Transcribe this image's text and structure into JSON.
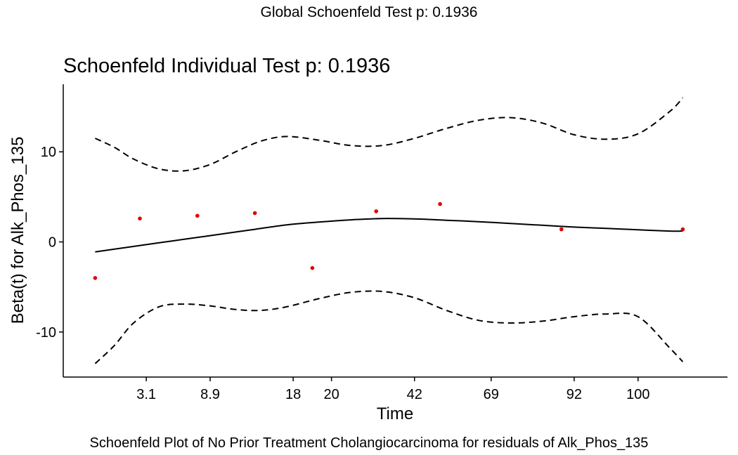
{
  "header": {
    "suptitle": "Global Schoenfeld Test p: 0.1936"
  },
  "footer": {
    "caption": "Schoenfeld Plot of No Prior Treatment Cholangiocarcinoma for residuals of Alk_Phos_135"
  },
  "chart_data": {
    "type": "scatter",
    "title": "Schoenfeld Individual Test p: 0.1936",
    "xlabel": "Time",
    "ylabel": "Beta(t) for Alk_Phos_135",
    "x_scale": "ordinal-rank",
    "xlim": [
      0.5,
      10.9
    ],
    "ylim": [
      -15,
      17.5
    ],
    "x_ticks": [
      {
        "pos": 1.8,
        "label": "3.1"
      },
      {
        "pos": 2.8,
        "label": "8.9"
      },
      {
        "pos": 4.1,
        "label": "18"
      },
      {
        "pos": 4.7,
        "label": "20"
      },
      {
        "pos": 6.0,
        "label": "42"
      },
      {
        "pos": 7.2,
        "label": "69"
      },
      {
        "pos": 8.5,
        "label": "92"
      },
      {
        "pos": 9.5,
        "label": "100"
      }
    ],
    "y_ticks": [
      -10,
      0,
      10
    ],
    "grid": false,
    "legend": "none",
    "points_color": "#e00000",
    "line_color": "#000000",
    "series": [
      {
        "kind": "points",
        "x": [
          1.0,
          1.7,
          2.6,
          3.5,
          4.4,
          5.4,
          6.4,
          8.3,
          10.2
        ],
        "y": [
          -4.0,
          2.6,
          2.9,
          3.2,
          -2.9,
          3.4,
          4.2,
          1.4,
          1.4
        ]
      },
      {
        "kind": "fit",
        "x": [
          1.0,
          1.5,
          2.0,
          2.5,
          3.0,
          3.5,
          4.0,
          4.5,
          5.0,
          5.5,
          6.0,
          6.5,
          7.0,
          7.5,
          8.0,
          8.5,
          9.0,
          9.5,
          10.0,
          10.2
        ],
        "y": [
          -1.1,
          -0.6,
          -0.1,
          0.4,
          0.9,
          1.4,
          1.9,
          2.2,
          2.45,
          2.6,
          2.55,
          2.4,
          2.25,
          2.05,
          1.85,
          1.65,
          1.5,
          1.35,
          1.2,
          1.2
        ]
      },
      {
        "kind": "upper",
        "x": [
          1.0,
          1.3,
          1.6,
          2.0,
          2.4,
          2.8,
          3.2,
          3.6,
          4.0,
          4.5,
          5.0,
          5.5,
          6.0,
          6.5,
          7.0,
          7.5,
          8.0,
          8.5,
          9.0,
          9.5,
          10.0,
          10.2
        ],
        "y": [
          11.5,
          10.5,
          9.2,
          8.1,
          7.9,
          8.6,
          10.0,
          11.2,
          11.7,
          11.3,
          10.7,
          10.7,
          11.5,
          12.6,
          13.5,
          13.8,
          13.2,
          11.9,
          11.4,
          12.0,
          14.5,
          16.0
        ]
      },
      {
        "kind": "lower",
        "x": [
          1.0,
          1.3,
          1.6,
          2.0,
          2.4,
          2.8,
          3.2,
          3.6,
          4.0,
          4.5,
          5.0,
          5.5,
          6.0,
          6.5,
          7.0,
          7.5,
          8.0,
          8.5,
          9.0,
          9.5,
          10.0,
          10.2
        ],
        "y": [
          -13.5,
          -11.5,
          -9.0,
          -7.2,
          -6.9,
          -7.1,
          -7.5,
          -7.6,
          -7.2,
          -6.3,
          -5.6,
          -5.5,
          -6.2,
          -7.6,
          -8.7,
          -9.0,
          -8.8,
          -8.3,
          -8.0,
          -8.3,
          -11.8,
          -13.3
        ]
      }
    ]
  }
}
